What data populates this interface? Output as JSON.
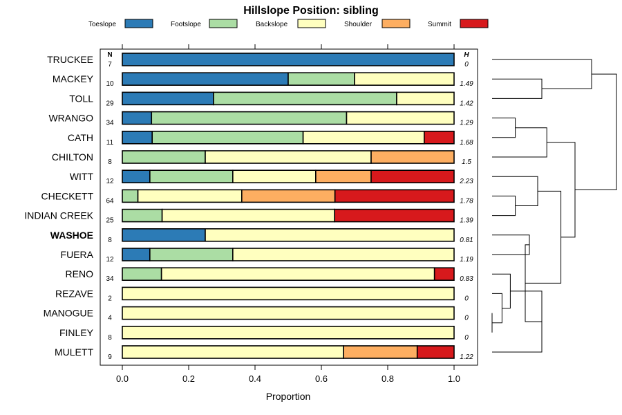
{
  "chart_data": {
    "type": "bar",
    "stacked": true,
    "orientation": "horizontal",
    "title": "Hillslope Position: sibling",
    "xlabel": "Proportion",
    "ylabel": "",
    "xlim": [
      0,
      1
    ],
    "x_ticks": [
      "0.0",
      "0.2",
      "0.4",
      "0.6",
      "0.8",
      "1.0"
    ],
    "legend_position": "top",
    "n_header": "N",
    "h_header": "H",
    "highlight_category": "WASHOE",
    "series": [
      {
        "name": "Toeslope",
        "color": "#2C7BB6",
        "values": [
          1.0,
          0.5,
          0.275,
          0.088,
          0.09,
          0,
          0.083,
          0,
          0,
          0.25,
          0.083,
          0,
          0,
          0,
          0,
          0
        ]
      },
      {
        "name": "Footslope",
        "color": "#ABDDA4",
        "values": [
          0,
          0.2,
          0.552,
          0.588,
          0.455,
          0.25,
          0.25,
          0.047,
          0.12,
          0,
          0.25,
          0.118,
          0,
          0,
          0,
          0
        ]
      },
      {
        "name": "Backslope",
        "color": "#FFFFBF",
        "values": [
          0,
          0.3,
          0.173,
          0.324,
          0.365,
          0.5,
          0.25,
          0.313,
          0.52,
          0.75,
          0.667,
          0.823,
          1.0,
          1.0,
          1.0,
          0.667
        ]
      },
      {
        "name": "Shoulder",
        "color": "#FDAE61",
        "values": [
          0,
          0,
          0,
          0,
          0,
          0.25,
          0.167,
          0.281,
          0,
          0,
          0,
          0,
          0,
          0,
          0,
          0.222
        ]
      },
      {
        "name": "Summit",
        "color": "#D7191C",
        "values": [
          0,
          0,
          0,
          0,
          0.09,
          0,
          0.25,
          0.359,
          0.36,
          0,
          0,
          0.059,
          0,
          0,
          0,
          0.111
        ]
      }
    ],
    "categories": [
      "TRUCKEE",
      "MACKEY",
      "TOLL",
      "WRANGO",
      "CATH",
      "CHILTON",
      "WITT",
      "CHECKETT",
      "INDIAN CREEK",
      "WASHOE",
      "FUERA",
      "RENO",
      "REZAVE",
      "MANOGUE",
      "FINLEY",
      "MULETT"
    ],
    "n_values": [
      "7",
      "10",
      "29",
      "34",
      "11",
      "8",
      "12",
      "64",
      "25",
      "8",
      "12",
      "34",
      "2",
      "4",
      "8",
      "9"
    ],
    "h_values": [
      "0",
      "1.49",
      "1.42",
      "1.29",
      "1.68",
      "1.5",
      "2.23",
      "1.78",
      "1.39",
      "0.81",
      "1.19",
      "0.83",
      "0",
      "0",
      "0",
      "1.22"
    ],
    "dendrogram": {
      "leaf_order": [
        "TRUCKEE",
        "MACKEY",
        "TOLL",
        "WRANGO",
        "CATH",
        "CHILTON",
        "WITT",
        "CHECKETT",
        "INDIAN CREEK",
        "WASHOE",
        "FUERA",
        "RENO",
        "REZAVE",
        "MANOGUE",
        "FINLEY",
        "MULETT"
      ],
      "merges": [
        {
          "a": "MANOGUE",
          "b": "FINLEY",
          "height": 0.0
        },
        {
          "a": "REZAVE",
          "b": "MANOGUE+FINLEY",
          "height": 0.12
        },
        {
          "a": "WRANGO",
          "b": "CATH",
          "height": 0.28
        },
        {
          "a": "CHECKETT",
          "b": "INDIAN CREEK",
          "height": 0.28
        },
        {
          "a": "RENO",
          "b": "REZAVE+MANOGUE+FINLEY",
          "height": 0.22
        },
        {
          "a": "TOLL",
          "b": "MACKEY",
          "height": 0.6
        },
        {
          "a": "WITT",
          "b": "CHECKETT+INDIAN CREEK",
          "height": 0.55
        },
        {
          "a": "WASHOE",
          "b": "FUERA",
          "height": 0.45
        },
        {
          "a": "RENO+REZAVE+MANOGUE+FINLEY",
          "b": "MULETT",
          "height": 0.6
        },
        {
          "a": "WASHOE+FUERA",
          "b": "RENO+REZAVE+MANOGUE+FINLEY+MULETT",
          "height": 0.4
        },
        {
          "a": "WRANGO+CATH",
          "b": "CHILTON",
          "height": 0.66
        },
        {
          "a": "WITT+CHECKETT+INDIAN CREEK",
          "b": "WASHOE+FUERA+RENO+REZAVE+MANOGUE+FINLEY+MULETT",
          "height": 0.83
        },
        {
          "a": "WRANGO+CATH+CHILTON",
          "b": "WITT+CHECKETT+INDIAN CREEK+WASHOE+FUERA+RENO+REZAVE+MANOGUE+FINLEY+MULETT",
          "height": 1.0
        },
        {
          "a": "TRUCKEE",
          "b": "TOLL+MACKEY",
          "height": 1.2
        },
        {
          "a": "TRUCKEE+TOLL+MACKEY",
          "b": "WRANGO+...+MULETT",
          "height": 1.5
        }
      ]
    }
  }
}
